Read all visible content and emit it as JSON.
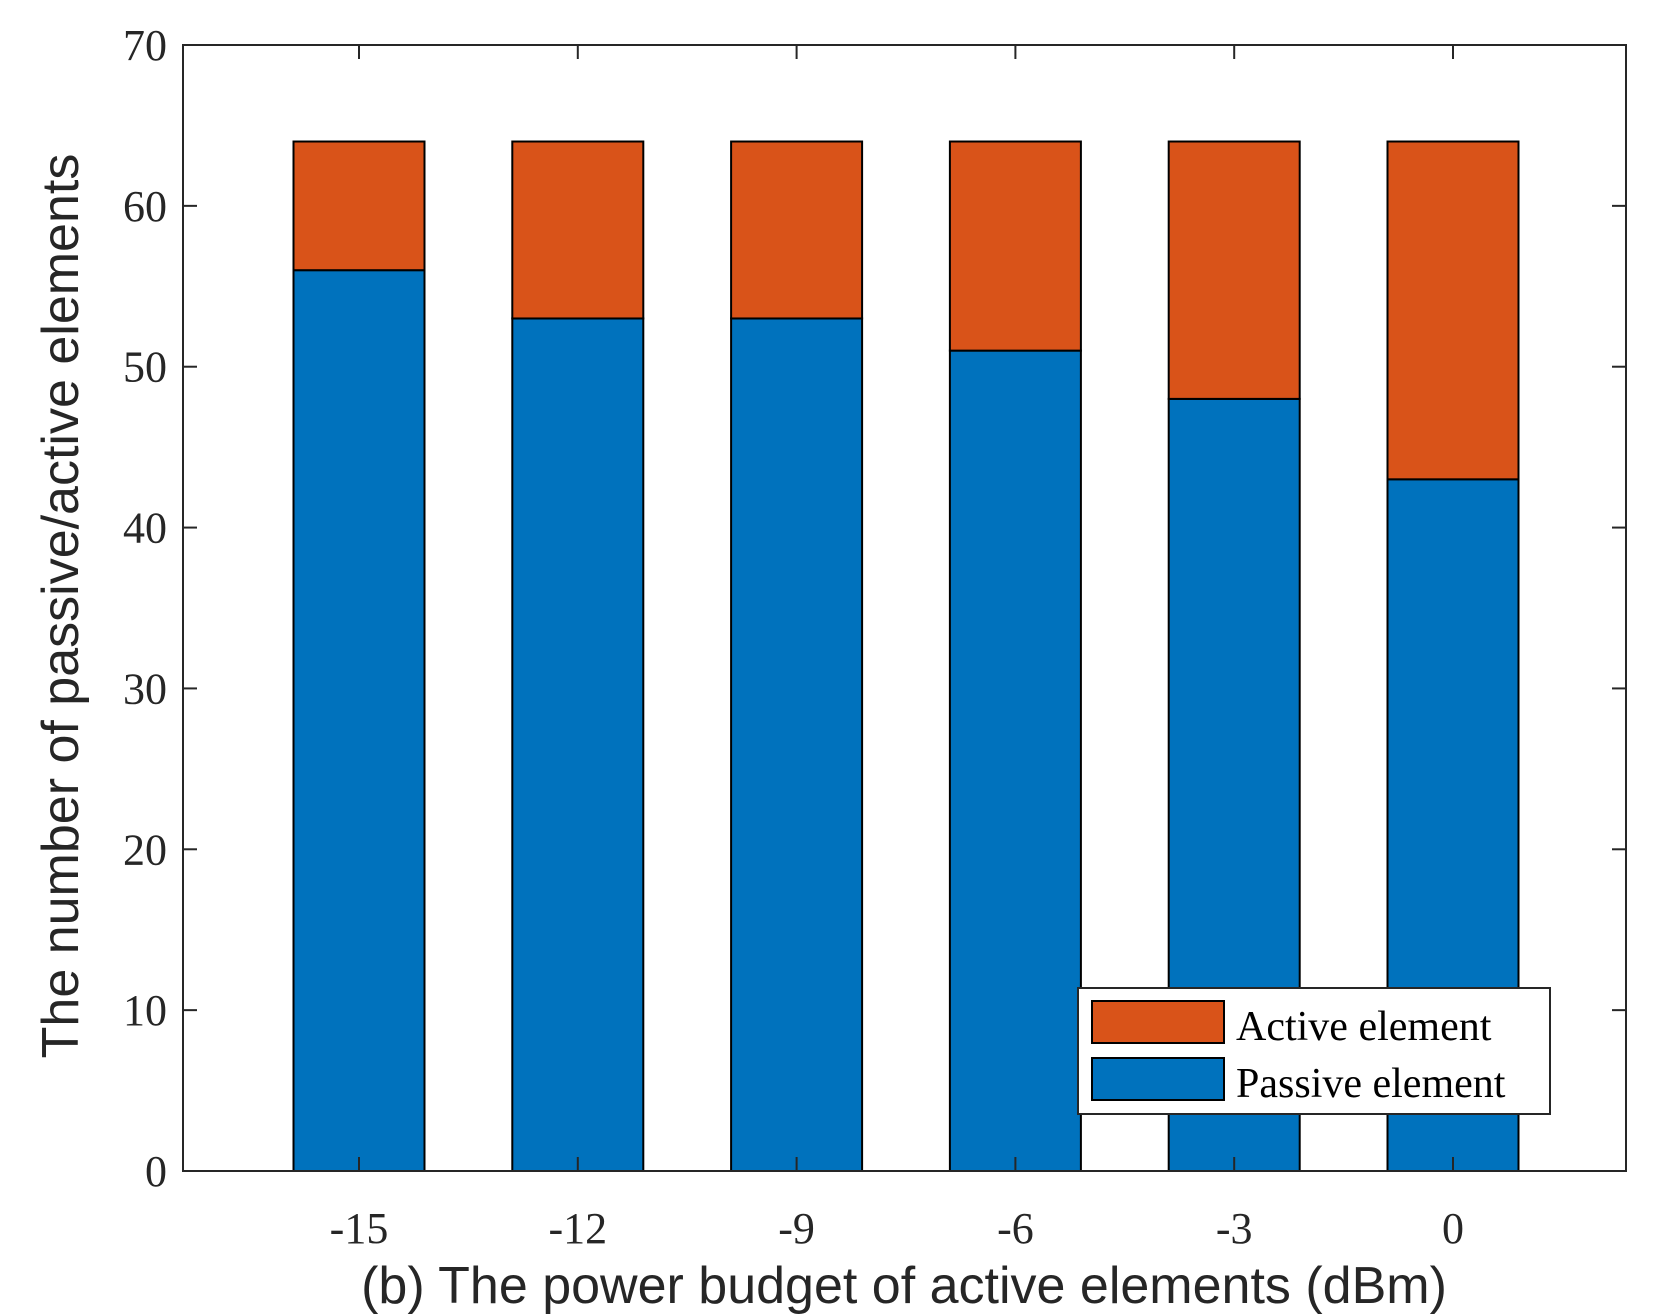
{
  "chart_data": {
    "type": "bar",
    "stacked": true,
    "categories": [
      "-15",
      "-12",
      "-9",
      "-6",
      "-3",
      "0"
    ],
    "series": [
      {
        "name": "Passive element",
        "color": "#0072BD",
        "values": [
          56,
          53,
          53,
          51,
          48,
          43
        ]
      },
      {
        "name": "Active element",
        "color": "#D95319",
        "values": [
          8,
          11,
          11,
          13,
          16,
          21
        ]
      }
    ],
    "title": "",
    "xlabel": "(b) The power budget of active elements (dBm)",
    "ylabel": "The number of passive/active elements",
    "ylim": [
      0,
      70
    ],
    "yticks": [
      "0",
      "10",
      "20",
      "30",
      "40",
      "50",
      "60",
      "70"
    ],
    "grid": false,
    "legend": {
      "placement": "bottom-right",
      "entries": [
        "Active element",
        "Passive element"
      ]
    }
  }
}
